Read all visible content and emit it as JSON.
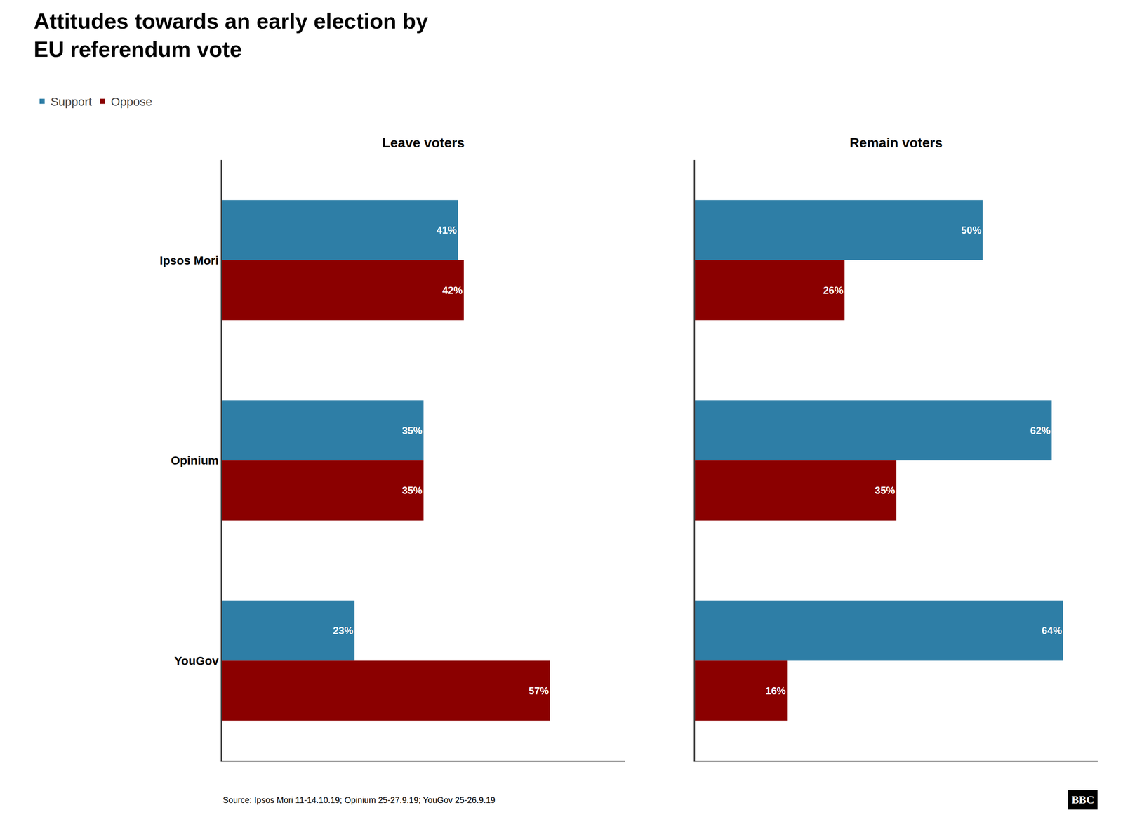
{
  "title": "Attitudes towards an early election by\nEU referendum vote",
  "annotations": [
    "Source: Ipsos Mori 11-14.10.19; Opinium 25-27.9.19; YouGov 25-26.9.19",
    "BBC"
  ],
  "chart_data": [
    {
      "type": "bar",
      "orientation": "horizontal",
      "title": "Leave voters",
      "categories": [
        "Ipsos Mori",
        "Opinium",
        "YouGov"
      ],
      "series": [
        {
          "name": "Support",
          "color": "#2e7ea6",
          "values": [
            41,
            35,
            23
          ],
          "value_labels": [
            "41%",
            "35%",
            "23%"
          ]
        },
        {
          "name": "Oppose",
          "color": "#8b0000",
          "values": [
            42,
            35,
            57
          ],
          "value_labels": [
            "42%",
            "35%",
            "57%"
          ]
        }
      ],
      "xlim": [
        0,
        70
      ],
      "grid": false,
      "data_labels": true,
      "tick_labels": "y",
      "legend": "upper left"
    },
    {
      "type": "bar",
      "orientation": "horizontal",
      "title": "Remain voters",
      "categories": [
        "Ipsos Mori",
        "Opinium",
        "YouGov"
      ],
      "series": [
        {
          "name": "Support",
          "color": "#2e7ea6",
          "values": [
            50,
            62,
            64
          ],
          "value_labels": [
            "50%",
            "62%",
            "64%"
          ]
        },
        {
          "name": "Oppose",
          "color": "#8b0000",
          "values": [
            26,
            35,
            16
          ],
          "value_labels": [
            "26%",
            "35%",
            "16%"
          ]
        }
      ],
      "xlim": [
        0,
        70
      ],
      "grid": false,
      "data_labels": true,
      "tick_labels": false
    }
  ]
}
